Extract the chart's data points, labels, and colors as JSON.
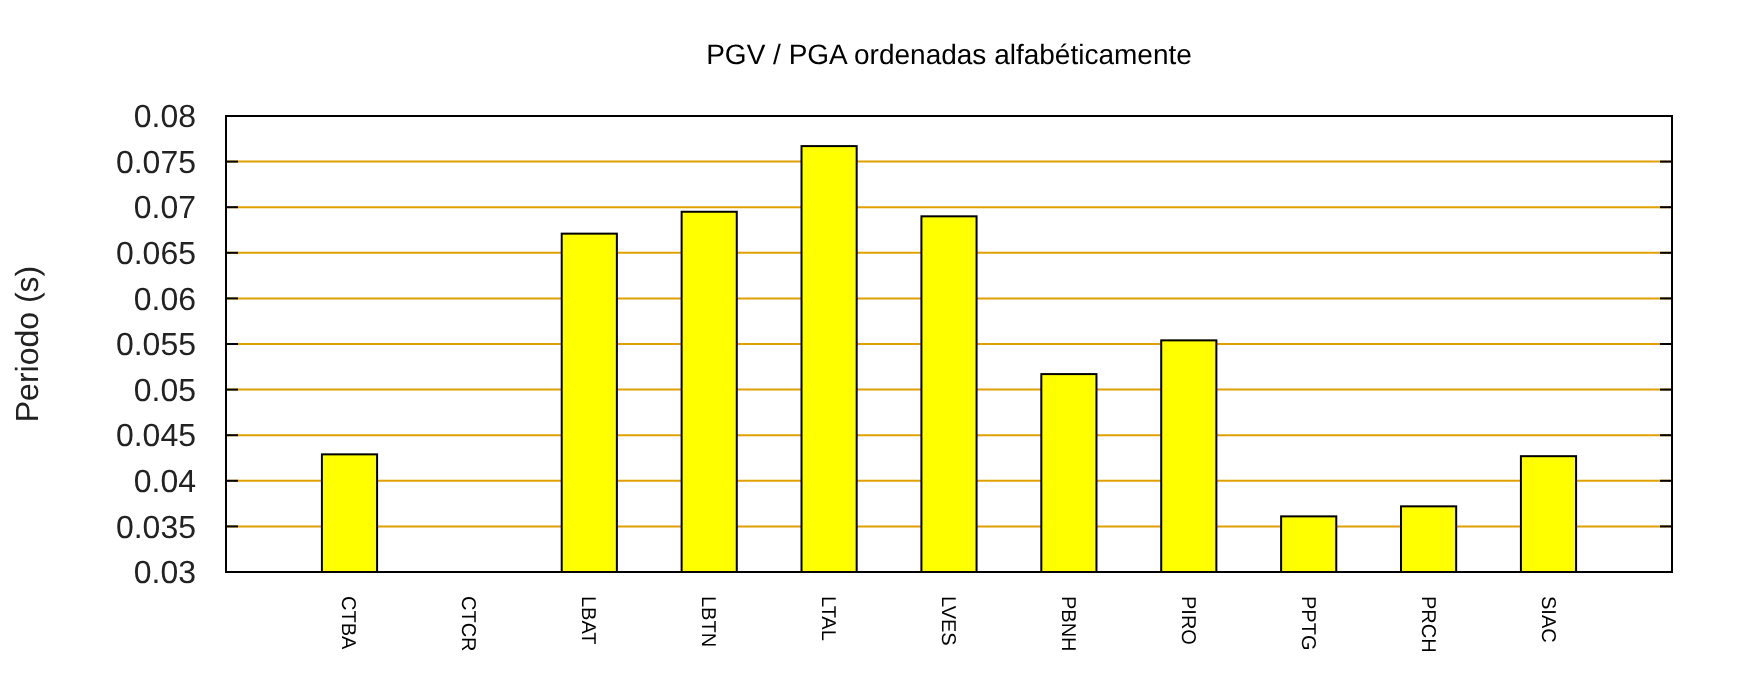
{
  "chart_data": {
    "type": "bar",
    "title": "PGV / PGA ordenadas alfabéticamente",
    "ylabel": "Periodo (s)",
    "categories": [
      "CTBA",
      "CTCR",
      "LBAT",
      "LBTN",
      "LTAL",
      "LVES",
      "PBNH",
      "PIRO",
      "PPTG",
      "PRCH",
      "SIAC"
    ],
    "values": [
      0.0429,
      null,
      0.0671,
      0.0695,
      0.0767,
      0.069,
      0.0517,
      0.0554,
      0.0361,
      0.0372,
      0.0427
    ],
    "color": "#ffff00",
    "ylim": [
      0.03,
      0.08
    ],
    "yticks": [
      0.03,
      0.035,
      0.04,
      0.045,
      0.05,
      0.055,
      0.06,
      0.065,
      0.07,
      0.075,
      0.08
    ],
    "grid": "y"
  }
}
